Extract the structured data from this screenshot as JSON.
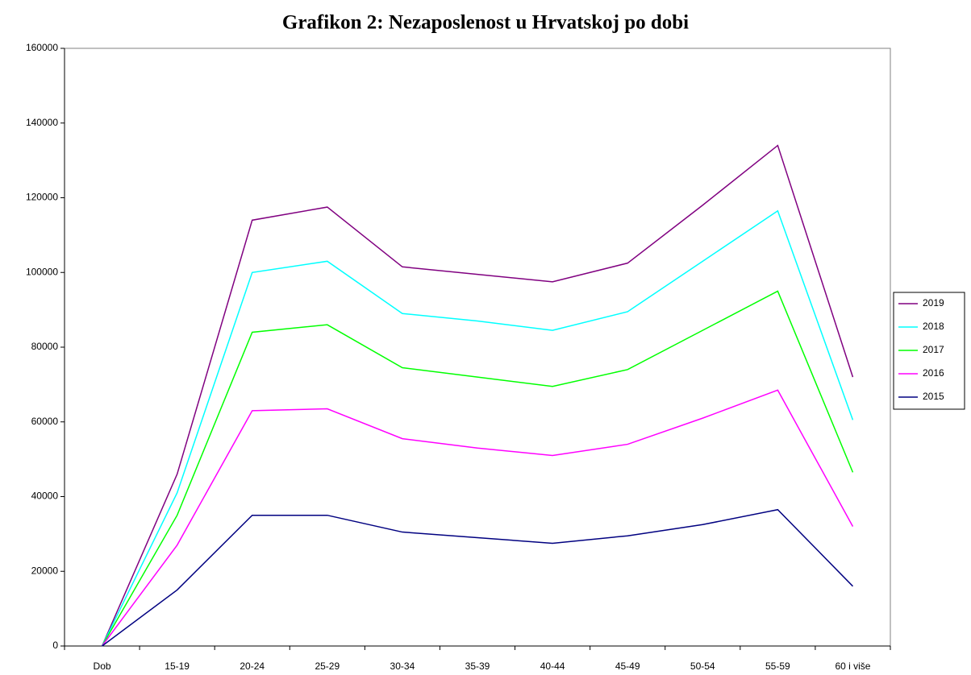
{
  "chart_data": {
    "type": "line",
    "title": "Grafikon 2: Nezaposlenost u Hrvatskoj po dobi",
    "categories": [
      "Dob",
      "15-19",
      "20-24",
      "25-29",
      "30-34",
      "35-39",
      "40-44",
      "45-49",
      "50-54",
      "55-59",
      "60 i više"
    ],
    "series": [
      {
        "name": "2019",
        "color": "#800080",
        "values": [
          0,
          46000,
          114000,
          117500,
          101500,
          99500,
          97500,
          102500,
          118000,
          134000,
          72000
        ]
      },
      {
        "name": "2018",
        "color": "#00ffff",
        "values": [
          0,
          41000,
          100000,
          103000,
          89000,
          87000,
          84500,
          89500,
          103000,
          116500,
          60500
        ]
      },
      {
        "name": "2017",
        "color": "#00ff00",
        "values": [
          0,
          35000,
          84000,
          86000,
          74500,
          72000,
          69500,
          74000,
          84500,
          95000,
          46500
        ]
      },
      {
        "name": "2016",
        "color": "#ff00ff",
        "values": [
          0,
          27000,
          63000,
          63500,
          55500,
          53000,
          51000,
          54000,
          61000,
          68500,
          32000
        ]
      },
      {
        "name": "2015",
        "color": "#000080",
        "values": [
          0,
          15000,
          35000,
          35000,
          30500,
          29000,
          27500,
          29500,
          32500,
          36500,
          16000
        ]
      }
    ],
    "ylim": [
      0,
      160000
    ],
    "yticks": [
      0,
      20000,
      40000,
      60000,
      80000,
      100000,
      120000,
      140000,
      160000
    ],
    "legend": "right"
  }
}
